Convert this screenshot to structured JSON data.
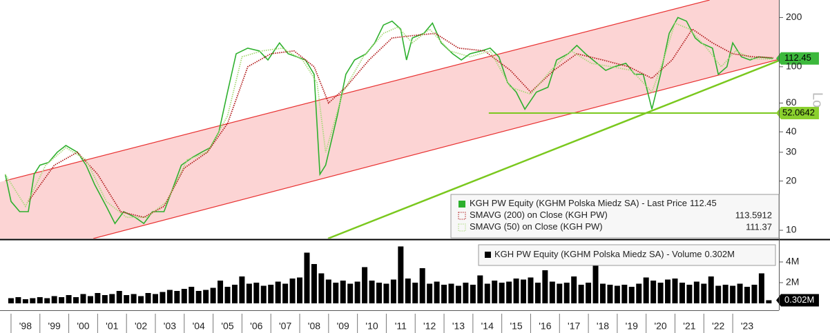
{
  "chart_data": [
    {
      "type": "line",
      "log_scale": true,
      "y_label": "Lo",
      "xlim": [
        1997.8,
        2024.6
      ],
      "ylim": [
        8.9,
        256
      ],
      "yticks": [
        10,
        20,
        30,
        40,
        60,
        100,
        200
      ],
      "series": [
        {
          "name": "KGH PW Equity (KGHM Polska Miedz SA) - Last Price",
          "color": "#2db02d",
          "style": "solid",
          "x": [
            1997.8,
            1998.0,
            1998.3,
            1998.6,
            1998.8,
            1999.0,
            1999.3,
            1999.6,
            1999.9,
            2000.3,
            2000.6,
            2000.9,
            2001.3,
            2001.6,
            2001.9,
            2002.3,
            2002.6,
            2002.9,
            2003.3,
            2003.6,
            2003.9,
            2004.3,
            2004.6,
            2004.9,
            2005.2,
            2005.5,
            2005.8,
            2006.2,
            2006.6,
            2006.9,
            2007.3,
            2007.6,
            2007.9,
            2008.2,
            2008.5,
            2008.7,
            2008.9,
            2009.3,
            2009.6,
            2009.9,
            2010.3,
            2010.6,
            2010.9,
            2011.2,
            2011.5,
            2011.7,
            2011.9,
            2012.3,
            2012.6,
            2012.9,
            2013.3,
            2013.6,
            2013.9,
            2014.3,
            2014.6,
            2014.9,
            2015.2,
            2015.5,
            2015.8,
            2016.2,
            2016.6,
            2016.9,
            2017.3,
            2017.6,
            2017.9,
            2018.3,
            2018.6,
            2018.9,
            2019.3,
            2019.6,
            2019.9,
            2020.2,
            2020.5,
            2020.8,
            2021.1,
            2021.4,
            2021.7,
            2021.9,
            2022.3,
            2022.5,
            2022.8,
            2023.0,
            2023.3,
            2023.6,
            2023.9,
            2024.4
          ],
          "values": [
            22,
            15,
            13,
            13,
            22,
            25,
            26,
            30,
            33,
            30,
            25,
            19,
            14,
            11,
            13,
            12,
            11,
            13,
            13,
            18,
            25,
            28,
            30,
            32,
            40,
            70,
            120,
            130,
            125,
            110,
            140,
            120,
            115,
            110,
            90,
            22,
            25,
            50,
            90,
            110,
            120,
            140,
            180,
            190,
            170,
            110,
            150,
            160,
            185,
            140,
            120,
            110,
            120,
            125,
            130,
            115,
            80,
            70,
            55,
            70,
            75,
            110,
            120,
            135,
            120,
            105,
            95,
            100,
            105,
            90,
            90,
            55,
            90,
            160,
            200,
            190,
            150,
            140,
            130,
            90,
            100,
            140,
            115,
            110,
            115,
            112.45
          ]
        },
        {
          "name": "SMAVG (200)  on Close (KGH PW)",
          "color": "#b01818",
          "style": "dotted",
          "x": [
            1998.6,
            1999.5,
            2000.3,
            2001.0,
            2001.8,
            2002.6,
            2003.3,
            2004.0,
            2004.8,
            2005.5,
            2006.2,
            2007.0,
            2007.8,
            2008.5,
            2009.0,
            2009.6,
            2010.4,
            2011.2,
            2011.9,
            2012.7,
            2013.5,
            2014.4,
            2015.3,
            2016.0,
            2016.8,
            2017.6,
            2018.5,
            2019.4,
            2020.2,
            2020.9,
            2021.6,
            2022.3,
            2023.0,
            2023.7,
            2024.4
          ],
          "values": [
            15,
            25,
            30,
            22,
            13,
            12,
            14,
            24,
            30,
            45,
            100,
            120,
            125,
            100,
            60,
            75,
            110,
            150,
            155,
            160,
            130,
            125,
            95,
            70,
            95,
            120,
            110,
            100,
            85,
            110,
            170,
            140,
            120,
            115,
            113.5912
          ]
        },
        {
          "name": "SMAVG (50)  on Close (KGH PW)",
          "color": "#a8d878",
          "style": "dotted",
          "x": [
            1997.8,
            1998.5,
            1999.2,
            1999.9,
            2000.6,
            2001.3,
            2002.0,
            2002.7,
            2003.4,
            2004.1,
            2004.8,
            2005.5,
            2006.0,
            2006.7,
            2007.4,
            2008.1,
            2008.6,
            2008.9,
            2009.5,
            2010.2,
            2010.9,
            2011.4,
            2011.9,
            2012.5,
            2013.2,
            2013.9,
            2014.6,
            2015.3,
            2016.0,
            2016.7,
            2017.4,
            2018.1,
            2018.8,
            2019.5,
            2020.2,
            2020.6,
            2021.0,
            2021.5,
            2022.1,
            2022.6,
            2023.1,
            2023.7,
            2024.4
          ],
          "values": [
            22,
            14,
            25,
            32,
            27,
            15,
            12,
            12,
            15,
            27,
            30,
            50,
            115,
            125,
            130,
            110,
            80,
            30,
            70,
            115,
            160,
            175,
            140,
            170,
            125,
            115,
            125,
            75,
            68,
            95,
            125,
            105,
            100,
            95,
            70,
            110,
            185,
            170,
            130,
            100,
            125,
            112,
            111.37
          ]
        }
      ],
      "channel": {
        "color": "#e83030",
        "fill": "#fcd4d4",
        "upper": {
          "x": [
            1997.8,
            2022.2
          ],
          "values": [
            20.1,
            256
          ]
        },
        "lower": {
          "x": [
            2000.85,
            2024.6
          ],
          "values": [
            8.9,
            111
          ]
        }
      },
      "support_line": {
        "color": "#7ac81e",
        "x": [
          2008.98,
          2024.6
        ],
        "values": [
          8.9,
          109
        ]
      },
      "horizontal_line": {
        "color": "#7ac81e",
        "x": [
          2014.55,
          2024.6
        ],
        "value": 52.0642
      }
    },
    {
      "type": "bar",
      "color": "#000000",
      "xlim": [
        1997.8,
        2024.6
      ],
      "ylim": [
        0,
        6.13
      ],
      "yticks": [
        {
          "value": 2,
          "label": "2M"
        },
        {
          "value": 4,
          "label": "4M"
        }
      ],
      "xticks": [
        {
          "value": 1998,
          "label": "'98"
        },
        {
          "value": 1999,
          "label": "'99"
        },
        {
          "value": 2000,
          "label": "'00"
        },
        {
          "value": 2001,
          "label": "'01"
        },
        {
          "value": 2002,
          "label": "'02"
        },
        {
          "value": 2003,
          "label": "'03"
        },
        {
          "value": 2004,
          "label": "'04"
        },
        {
          "value": 2005,
          "label": "'05"
        },
        {
          "value": 2006,
          "label": "'06"
        },
        {
          "value": 2007,
          "label": "'07"
        },
        {
          "value": 2008,
          "label": "'08"
        },
        {
          "value": 2009,
          "label": "'09"
        },
        {
          "value": 2010,
          "label": "'10"
        },
        {
          "value": 2011,
          "label": "'11"
        },
        {
          "value": 2012,
          "label": "'12"
        },
        {
          "value": 2013,
          "label": "'13"
        },
        {
          "value": 2014,
          "label": "'14"
        },
        {
          "value": 2015,
          "label": "'15"
        },
        {
          "value": 2016,
          "label": "'16"
        },
        {
          "value": 2017,
          "label": "'17"
        },
        {
          "value": 2018,
          "label": "'18"
        },
        {
          "value": 2019,
          "label": "'19"
        },
        {
          "value": 2020,
          "label": "'20"
        },
        {
          "value": 2021,
          "label": "'21"
        },
        {
          "value": 2022,
          "label": "'22"
        },
        {
          "value": 2023,
          "label": "'23"
        }
      ],
      "series": [
        {
          "name": "KGH PW Equity (KGHM Polska Miedz SA) - Volume",
          "last_value_label": "0.302M",
          "x": [
            1998.0,
            1998.25,
            1998.5,
            1998.75,
            1999.0,
            1999.25,
            1999.5,
            1999.75,
            2000.0,
            2000.25,
            2000.5,
            2000.75,
            2001.0,
            2001.25,
            2001.5,
            2001.75,
            2002.0,
            2002.25,
            2002.5,
            2002.75,
            2003.0,
            2003.25,
            2003.5,
            2003.75,
            2004.0,
            2004.25,
            2004.5,
            2004.75,
            2005.0,
            2005.25,
            2005.5,
            2005.75,
            2006.0,
            2006.25,
            2006.5,
            2006.75,
            2007.0,
            2007.25,
            2007.5,
            2007.75,
            2008.0,
            2008.25,
            2008.5,
            2008.75,
            2009.0,
            2009.25,
            2009.5,
            2009.75,
            2010.0,
            2010.25,
            2010.5,
            2010.75,
            2011.0,
            2011.25,
            2011.5,
            2011.75,
            2012.0,
            2012.25,
            2012.5,
            2012.75,
            2013.0,
            2013.25,
            2013.5,
            2013.75,
            2014.0,
            2014.25,
            2014.5,
            2014.75,
            2015.0,
            2015.25,
            2015.5,
            2015.75,
            2016.0,
            2016.25,
            2016.5,
            2016.75,
            2017.0,
            2017.25,
            2017.5,
            2017.75,
            2018.0,
            2018.25,
            2018.5,
            2018.75,
            2019.0,
            2019.25,
            2019.5,
            2019.75,
            2020.0,
            2020.25,
            2020.5,
            2020.75,
            2021.0,
            2021.25,
            2021.5,
            2021.75,
            2022.0,
            2022.25,
            2022.5,
            2022.75,
            2023.0,
            2023.25,
            2023.5,
            2023.75,
            2024.0,
            2024.25
          ],
          "values": [
            0.5,
            0.6,
            0.4,
            0.5,
            0.6,
            0.5,
            0.7,
            0.6,
            0.8,
            0.6,
            0.9,
            0.7,
            1.0,
            0.8,
            0.9,
            1.2,
            0.8,
            0.9,
            0.7,
            1.0,
            0.9,
            1.1,
            1.3,
            1.2,
            1.4,
            1.6,
            1.2,
            1.3,
            1.5,
            2.2,
            1.6,
            1.8,
            2.6,
            1.9,
            2.0,
            1.7,
            1.8,
            2.1,
            1.9,
            2.4,
            2.5,
            4.9,
            3.8,
            2.9,
            2.3,
            2.0,
            2.2,
            1.9,
            2.1,
            3.5,
            2.2,
            2.0,
            1.9,
            2.3,
            5.5,
            2.4,
            2.0,
            3.4,
            1.9,
            2.1,
            1.8,
            1.9,
            1.7,
            2.0,
            1.8,
            2.7,
            1.9,
            2.2,
            2.0,
            2.1,
            2.4,
            2.3,
            2.5,
            2.0,
            3.2,
            2.1,
            1.9,
            2.0,
            2.6,
            1.8,
            2.0,
            3.8,
            1.9,
            1.8,
            1.7,
            1.8,
            1.6,
            1.9,
            2.5,
            2.2,
            2.0,
            2.3,
            2.4,
            2.0,
            1.8,
            2.1,
            1.9,
            2.6,
            1.7,
            1.8,
            1.7,
            1.9,
            1.6,
            1.8,
            2.9,
            0.302
          ]
        }
      ]
    }
  ]
}
